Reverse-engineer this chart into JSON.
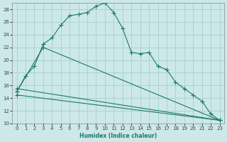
{
  "xlabel": "Humidex (Indice chaleur)",
  "xlim": [
    -0.5,
    23.5
  ],
  "ylim": [
    10,
    29
  ],
  "background_color": "#cce8e8",
  "grid_color": "#aacfcf",
  "line_color": "#1a7a6a",
  "yticks": [
    10,
    12,
    14,
    16,
    18,
    20,
    22,
    24,
    26,
    28
  ],
  "xticks": [
    0,
    1,
    2,
    3,
    4,
    5,
    6,
    7,
    8,
    9,
    10,
    11,
    12,
    13,
    14,
    15,
    16,
    17,
    18,
    19,
    20,
    21,
    22,
    23
  ],
  "line1_x": [
    0,
    1,
    2,
    3,
    4,
    5,
    6,
    7,
    8,
    9,
    10,
    11,
    12,
    13,
    14,
    15,
    16,
    17,
    18,
    19,
    20,
    21,
    22,
    23
  ],
  "line1_y": [
    15.0,
    17.5,
    19.0,
    22.5,
    23.5,
    25.5,
    27.0,
    27.2,
    27.5,
    28.5,
    29.0,
    27.5,
    25.0,
    21.2,
    21.0,
    21.2,
    19.0,
    18.5,
    16.5,
    15.5,
    14.5,
    13.5,
    11.5,
    10.5
  ],
  "line2_x": [
    0,
    3,
    23
  ],
  "line2_y": [
    15.0,
    22.0,
    10.5
  ],
  "line3_x": [
    0,
    23
  ],
  "line3_y": [
    14.5,
    10.5
  ],
  "line4_x": [
    0,
    23
  ],
  "line4_y": [
    15.5,
    10.5
  ]
}
